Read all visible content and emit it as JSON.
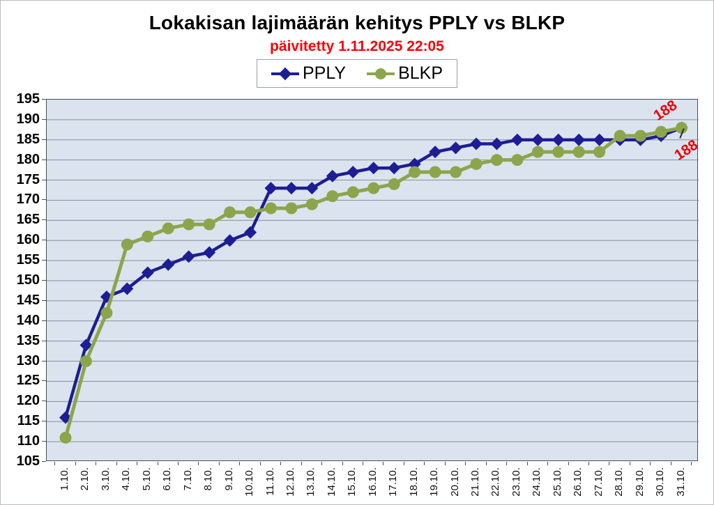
{
  "page": {
    "title": "Lokakisan lajimäärän kehitys PPLY vs BLKP",
    "subtitle": "päivitetty 1.11.2025 22:05"
  },
  "legend": {
    "items": [
      {
        "label": "PPLY"
      },
      {
        "label": "BLKP"
      }
    ]
  },
  "chart_data": {
    "type": "line",
    "title": "Lokakisan lajimäärän kehitys PPLY vs BLKP",
    "subtitle": "päivitetty 1.11.2025 22:05",
    "xlabel": "",
    "ylabel": "",
    "ylim": [
      105,
      195
    ],
    "ytick_step": 5,
    "grid": true,
    "legend_position": "top",
    "plot_bg": "#dbe3ee",
    "gridline_color": "#878e9c",
    "frame_color": "#464d58",
    "categories": [
      "1.10.",
      "2.10.",
      "3.10.",
      "4.10.",
      "5.10.",
      "6.10.",
      "7.10.",
      "8.10.",
      "9.10.",
      "10.10.",
      "11.10.",
      "12.10.",
      "13.10.",
      "14.10.",
      "15.10.",
      "16.10.",
      "17.10.",
      "18.10.",
      "19.10.",
      "20.10.",
      "21.10.",
      "22.10.",
      "23.10.",
      "24.10.",
      "25.10.",
      "26.10.",
      "27.10.",
      "28.10.",
      "29.10.",
      "30.10.",
      "31.10."
    ],
    "series": [
      {
        "name": "PPLY",
        "marker": "diamond",
        "color": "#1d1d94",
        "line_width": 4.5,
        "values": [
          116,
          134,
          146,
          148,
          152,
          154,
          156,
          157,
          160,
          162,
          173,
          173,
          173,
          176,
          177,
          178,
          178,
          179,
          182,
          183,
          184,
          184,
          185,
          185,
          185,
          185,
          185,
          185,
          185,
          186,
          188
        ]
      },
      {
        "name": "BLKP",
        "marker": "circle",
        "color": "#8ca54c",
        "line_width": 5,
        "values": [
          111,
          130,
          142,
          159,
          161,
          163,
          164,
          164,
          167,
          167,
          168,
          168,
          169,
          171,
          172,
          173,
          174,
          177,
          177,
          177,
          179,
          180,
          180,
          182,
          182,
          182,
          182,
          186,
          186,
          187,
          188
        ]
      }
    ],
    "annotations": [
      {
        "text": "188",
        "series": "BLKP",
        "color": "#e90007"
      },
      {
        "text": "188",
        "series": "PPLY",
        "color": "#e90007"
      }
    ]
  }
}
